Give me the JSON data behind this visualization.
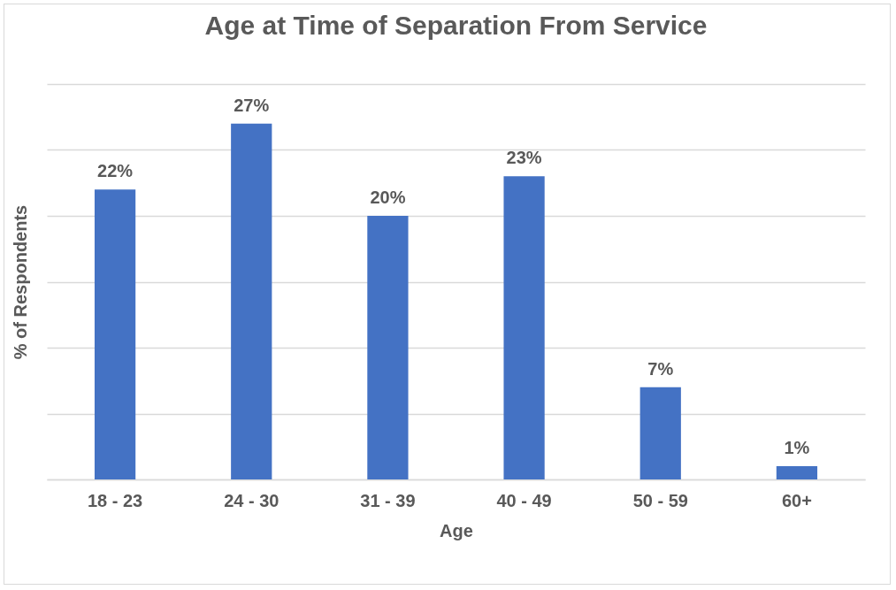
{
  "chart_data": {
    "type": "bar",
    "title": "Age at Time of Separation From Service",
    "xlabel": "Age",
    "ylabel": "% of Respondents",
    "categories": [
      "18 - 23",
      "24 - 30",
      "31 - 39",
      "40 - 49",
      "50 - 59",
      "60+"
    ],
    "values": [
      22,
      27,
      20,
      23,
      7,
      1
    ],
    "value_labels": [
      "22%",
      "27%",
      "20%",
      "23%",
      "7%",
      "1%"
    ],
    "color": "#4472c4",
    "ylim": [
      0,
      30
    ],
    "yticks": [
      0,
      5,
      10,
      15,
      20,
      25,
      30
    ],
    "grid": "y",
    "tick_labels": "x"
  }
}
